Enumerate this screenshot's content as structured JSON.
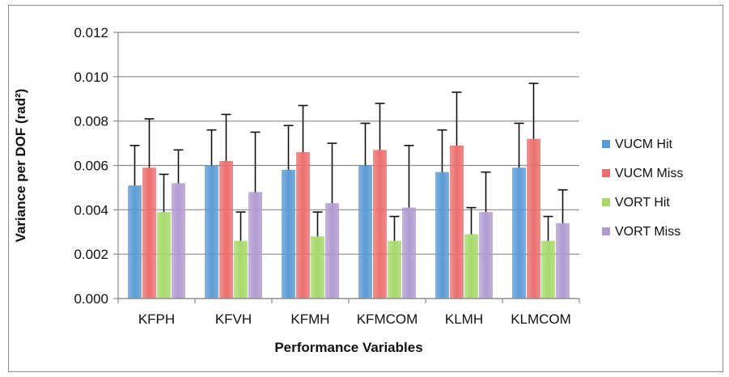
{
  "chart_data": {
    "type": "bar",
    "title": "",
    "xlabel": "Performance Variables",
    "ylabel": "Variance per DOF (rad²)",
    "ylim": [
      0,
      0.012
    ],
    "yticks": [
      "0.000",
      "0.002",
      "0.004",
      "0.006",
      "0.008",
      "0.010",
      "0.012"
    ],
    "grid": true,
    "legend_position": "right",
    "categories": [
      "KFPH",
      "KFVH",
      "KFMH",
      "KFMCOM",
      "KLMH",
      "KLMCOM"
    ],
    "series": [
      {
        "name": "VUCM Hit",
        "color": "#5b9bd5",
        "values": [
          0.0051,
          0.006,
          0.0058,
          0.006,
          0.0057,
          0.0059
        ],
        "errors": [
          0.0018,
          0.0016,
          0.002,
          0.0019,
          0.0019,
          0.002
        ]
      },
      {
        "name": "VUCM Miss",
        "color": "#ec6f6f",
        "values": [
          0.0059,
          0.0062,
          0.0066,
          0.0067,
          0.0069,
          0.0072
        ],
        "errors": [
          0.0022,
          0.0021,
          0.0021,
          0.0021,
          0.0024,
          0.0025
        ]
      },
      {
        "name": "VORT Hit",
        "color": "#a6d96a",
        "values": [
          0.0039,
          0.0026,
          0.0028,
          0.0026,
          0.0029,
          0.0026
        ],
        "errors": [
          0.0017,
          0.0013,
          0.0011,
          0.0011,
          0.0012,
          0.0011
        ]
      },
      {
        "name": "VORT Miss",
        "color": "#b09cd0",
        "values": [
          0.0052,
          0.0048,
          0.0043,
          0.0041,
          0.0039,
          0.0034
        ],
        "errors": [
          0.0015,
          0.0027,
          0.0027,
          0.0028,
          0.0018,
          0.0015
        ]
      }
    ]
  }
}
